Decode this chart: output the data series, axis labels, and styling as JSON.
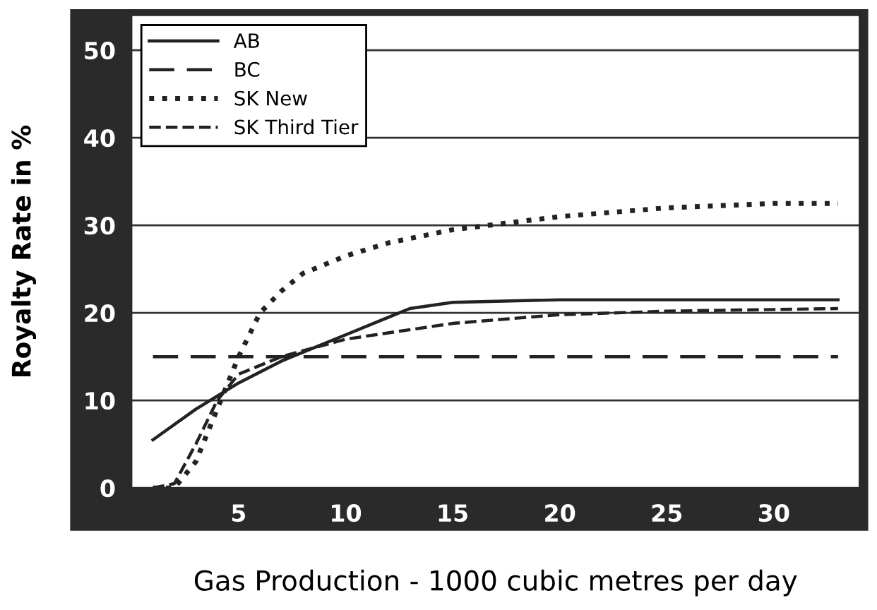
{
  "chart_data": {
    "type": "line",
    "xlabel": "Gas Production - 1000 cubic metres per day",
    "ylabel": "Royalty Rate in %",
    "xlim": [
      0,
      34
    ],
    "ylim": [
      0,
      54
    ],
    "xticks": [
      5,
      10,
      15,
      20,
      25,
      30
    ],
    "yticks": [
      0,
      10,
      20,
      30,
      40,
      50
    ],
    "grid": "y",
    "legend": "top left",
    "series": [
      {
        "name": "AB",
        "color": "#222222",
        "line_style": "solid",
        "x": [
          1,
          3,
          5,
          7,
          10,
          12,
          13,
          15,
          20,
          25,
          33
        ],
        "values": [
          5.5,
          9,
          12,
          14.5,
          17.5,
          19.5,
          20.5,
          21.2,
          21.5,
          21.5,
          21.5
        ]
      },
      {
        "name": "BC",
        "color": "#222222",
        "line_style": "dashed",
        "x": [
          1,
          33
        ],
        "values": [
          15,
          15
        ]
      },
      {
        "name": "SK New",
        "color": "#222222",
        "line_style": "dotted",
        "x": [
          1,
          2,
          3,
          4,
          5,
          6,
          7,
          8,
          10,
          12,
          15,
          20,
          25,
          30,
          33
        ],
        "values": [
          0,
          0,
          3,
          9,
          15,
          20,
          22.5,
          24.5,
          26.5,
          28,
          29.5,
          31,
          32,
          32.5,
          32.5
        ]
      },
      {
        "name": "SK Third Tier",
        "color": "#222222",
        "line_style": "dashed",
        "x": [
          1,
          2,
          3,
          4,
          5,
          7,
          10,
          15,
          20,
          25,
          33
        ],
        "values": [
          0,
          0.5,
          5,
          10,
          13,
          15,
          17,
          18.8,
          19.8,
          20.2,
          20.5
        ]
      }
    ]
  }
}
